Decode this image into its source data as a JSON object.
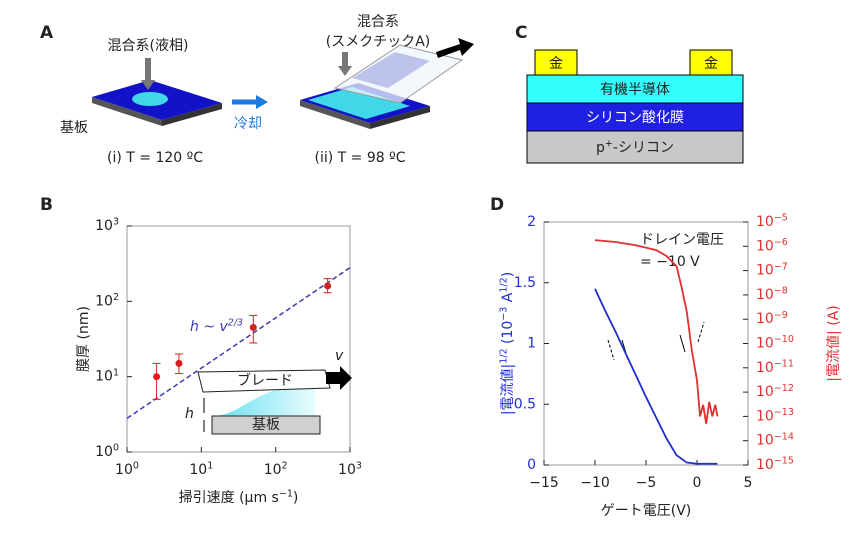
{
  "panels": {
    "A": {
      "label": "A",
      "droplet": "混合系(液相)",
      "substrate": "基板",
      "cooling": "冷却",
      "mixture": "混合系",
      "mixture_phase": "(スメクチックA)",
      "caption_i": "(i) T = 120 ºC",
      "caption_ii": "(ii) T = 98 ºC"
    },
    "C": {
      "label": "C",
      "electrode_left": "金",
      "electrode_right": "金",
      "semiconductor": "有機半導体",
      "oxide": "シリコン酸化膜",
      "substrate": "p^{+}-シリコン"
    }
  },
  "chart_data": [
    {
      "type": "scatter",
      "panel": "B",
      "xlabel": "掃引速度 (μm s^{−1})",
      "ylabel": "膜厚 (nm)",
      "xscale": "log",
      "yscale": "log",
      "xlim": [
        1,
        1000
      ],
      "ylim": [
        1,
        1000
      ],
      "xticks": [
        {
          "value": 1,
          "label": "10^{0}"
        },
        {
          "value": 10,
          "label": "10^{1}"
        },
        {
          "value": 100,
          "label": "10^{2}"
        },
        {
          "value": 1000,
          "label": "10^{3}"
        }
      ],
      "yticks": [
        {
          "value": 1,
          "label": "10^{0}"
        },
        {
          "value": 10,
          "label": "10^{1}"
        },
        {
          "value": 100,
          "label": "10^{2}"
        },
        {
          "value": 1000,
          "label": "10^{3}"
        }
      ],
      "x": [
        2.5,
        5,
        50,
        500
      ],
      "values": [
        10,
        15,
        45,
        160
      ],
      "y_low": [
        5,
        11,
        28,
        130
      ],
      "y_high": [
        15,
        20,
        65,
        200
      ],
      "color": "#d62020",
      "fit": {
        "x": [
          1,
          1000
        ],
        "values": [
          2.8,
          280
        ],
        "color": "#3a3ab0",
        "label": "h ~ v^{2/3}"
      },
      "inset": {
        "blade": "ブレード",
        "substrate": "基板",
        "height": "h",
        "velocity": "v"
      }
    },
    {
      "type": "line",
      "panel": "D",
      "xlabel": "ゲート電圧(V)",
      "ylabel": "|電流値|^{1/2} (10^{−3} A^{1/2})",
      "y2label": "|電流値| (A)",
      "xlim": [
        -15,
        5
      ],
      "xticks": [
        {
          "value": -15,
          "label": "−15"
        },
        {
          "value": -10,
          "label": "−10"
        },
        {
          "value": -5,
          "label": "−5"
        },
        0,
        5
      ],
      "ylim": [
        0,
        2
      ],
      "yticks": [
        0,
        0.5,
        1,
        1.5,
        2
      ],
      "ylabel_color": "#1f2fd0",
      "y2scale": "log",
      "y2lim": [
        1e-15,
        1e-05
      ],
      "y2label_color": "#e03030",
      "y2ticks": [
        {
          "value": 1e-15,
          "label": "10^{−15}"
        },
        {
          "value": 1e-14,
          "label": "10^{−14}"
        },
        {
          "value": 1e-13,
          "label": "10^{−13}"
        },
        {
          "value": 1e-12,
          "label": "10^{−12}"
        },
        {
          "value": 1e-11,
          "label": "10^{−11}"
        },
        {
          "value": 1e-10,
          "label": "10^{−10}"
        },
        {
          "value": 1e-09,
          "label": "10^{−9}"
        },
        {
          "value": 1e-08,
          "label": "10^{−8}"
        },
        {
          "value": 1e-07,
          "label": "10^{−7}"
        },
        {
          "value": 1e-06,
          "label": "10^{−6}"
        },
        {
          "value": 1e-05,
          "label": "10^{−5}"
        }
      ],
      "annotation": [
        "ドレイン電圧",
        "= −10 V"
      ],
      "series": [
        {
          "color": "#1f2fd0",
          "x": [
            -10,
            -9,
            -8,
            -7,
            -6,
            -5,
            -4,
            -3,
            -2,
            -1,
            0,
            1,
            2
          ],
          "values": [
            1.45,
            1.27,
            1.1,
            0.92,
            0.74,
            0.56,
            0.39,
            0.22,
            0.08,
            0.02,
            0.01,
            0.01,
            0.01
          ]
        },
        {
          "color": "#e03030",
          "axis": "y2",
          "x": [
            -10,
            -8,
            -6,
            -4,
            -3,
            -2,
            -1.5,
            -1,
            -0.5,
            0,
            0.3,
            0.6,
            0.9,
            1.2,
            1.5,
            1.8,
            2
          ],
          "values": [
            1.8e-06,
            1.5e-06,
            1.1e-06,
            7e-07,
            4e-07,
            1.5e-07,
            2e-08,
            2e-09,
            5e-11,
            3e-12,
            1e-13,
            3e-13,
            5e-14,
            4e-13,
            1e-13,
            3e-13,
            1e-13
          ]
        }
      ]
    }
  ]
}
